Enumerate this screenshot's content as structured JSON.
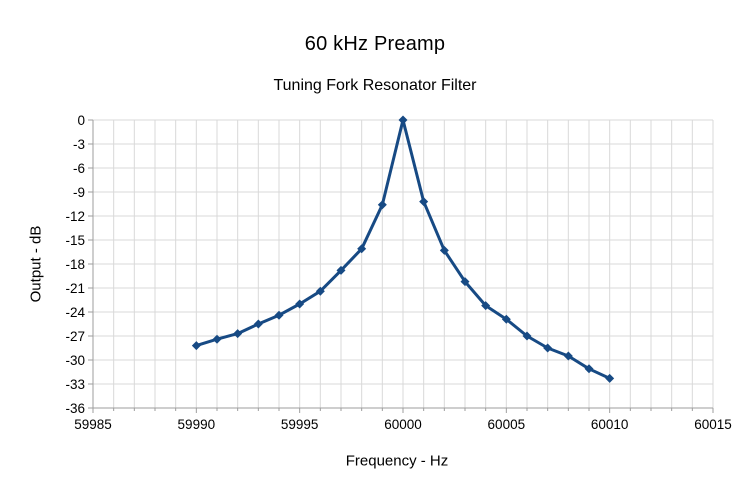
{
  "chart_data": {
    "type": "line",
    "title": "60 kHz Preamp",
    "subtitle": "Tuning Fork Resonator Filter",
    "xlabel": "Frequency - Hz",
    "ylabel": "Output - dB",
    "xlim": [
      59985,
      60015
    ],
    "ylim": [
      -36,
      0
    ],
    "x_major_ticks": [
      59985,
      59990,
      59995,
      60000,
      60005,
      60010,
      60015
    ],
    "x_minor_step": 1,
    "y_tick_step": 3,
    "grid": true,
    "legend_position": "none",
    "series": [
      {
        "name": "Output - dB",
        "marker": "diamond",
        "x": [
          59990,
          59991,
          59992,
          59993,
          59994,
          59995,
          59996,
          59997,
          59998,
          59999,
          60000,
          60001,
          60002,
          60003,
          60004,
          60005,
          60006,
          60007,
          60008,
          60009,
          60010
        ],
        "y": [
          -28.2,
          -27.4,
          -26.7,
          -25.5,
          -24.4,
          -23.0,
          -21.4,
          -18.8,
          -16.1,
          -10.6,
          0,
          -10.2,
          -16.3,
          -20.2,
          -23.2,
          -24.9,
          -27.0,
          -28.5,
          -29.5,
          -31.1,
          -32.3
        ]
      }
    ]
  },
  "colors": {
    "background": "#ffffff",
    "series": "#174a84",
    "grid": "#d9d9d9",
    "axis": "#9e9e9e",
    "text": "#000000"
  }
}
